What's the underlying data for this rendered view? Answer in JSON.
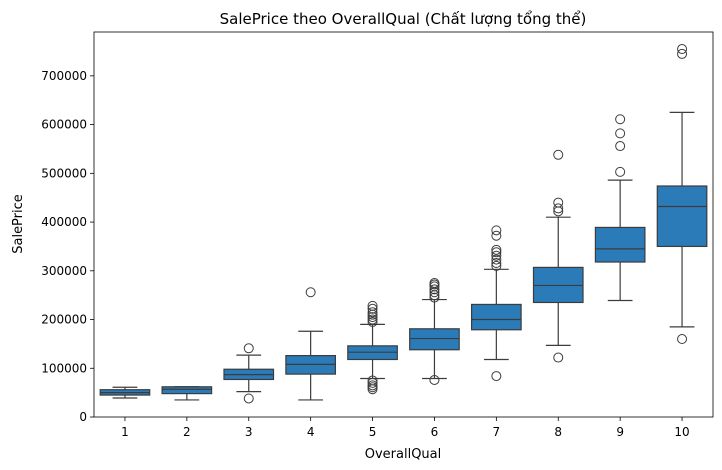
{
  "chart_data": {
    "type": "box",
    "title": "SalePrice theo OverallQual (Chất lượng tổng thể)",
    "xlabel": "OverallQual",
    "ylabel": "SalePrice",
    "categories": [
      "1",
      "2",
      "3",
      "4",
      "5",
      "6",
      "7",
      "8",
      "9",
      "10"
    ],
    "ylim": [
      0,
      790000
    ],
    "yticks": [
      0,
      100000,
      200000,
      300000,
      400000,
      500000,
      600000,
      700000
    ],
    "ytick_labels": [
      "0",
      "100000",
      "200000",
      "300000",
      "400000",
      "500000",
      "600000",
      "700000"
    ],
    "box_color": "#2b7bb9",
    "line_color": "#3c3c3c",
    "grid": false,
    "boxes": [
      {
        "category": "1",
        "whisker_low": 39000,
        "q1": 45000,
        "median": 50000,
        "q3": 56000,
        "whisker_high": 61000,
        "outliers": []
      },
      {
        "category": "2",
        "whisker_low": 35000,
        "q1": 48000,
        "median": 57000,
        "q3": 62000,
        "whisker_high": 62000,
        "outliers": []
      },
      {
        "category": "3",
        "whisker_low": 52000,
        "q1": 77000,
        "median": 87000,
        "q3": 98000,
        "whisker_high": 127000,
        "outliers": [
          38000,
          141000
        ]
      },
      {
        "category": "4",
        "whisker_low": 35000,
        "q1": 88000,
        "median": 108000,
        "q3": 126000,
        "whisker_high": 176000,
        "outliers": [
          256000
        ]
      },
      {
        "category": "5",
        "whisker_low": 79000,
        "q1": 118000,
        "median": 133000,
        "q3": 146000,
        "whisker_high": 190000,
        "outliers": [
          57000,
          61000,
          65000,
          70000,
          75000,
          195000,
          200000,
          205000,
          210000,
          215000,
          222000,
          228000
        ]
      },
      {
        "category": "6",
        "whisker_low": 79000,
        "q1": 138000,
        "median": 161000,
        "q3": 181000,
        "whisker_high": 241000,
        "outliers": [
          76000,
          245000,
          250000,
          256000,
          262000,
          268000,
          272000,
          275000
        ]
      },
      {
        "category": "7",
        "whisker_low": 118000,
        "q1": 179000,
        "median": 200000,
        "q3": 231000,
        "whisker_high": 303000,
        "outliers": [
          84000,
          310000,
          316000,
          323000,
          331000,
          338000,
          343000,
          372000,
          383000
        ]
      },
      {
        "category": "8",
        "whisker_low": 147000,
        "q1": 235000,
        "median": 270000,
        "q3": 307000,
        "whisker_high": 410000,
        "outliers": [
          122000,
          422000,
          428000,
          440000,
          538000
        ]
      },
      {
        "category": "9",
        "whisker_low": 239000,
        "q1": 318000,
        "median": 345000,
        "q3": 389000,
        "whisker_high": 486000,
        "outliers": [
          503000,
          556000,
          582000,
          611000
        ]
      },
      {
        "category": "10",
        "whisker_low": 185000,
        "q1": 350000,
        "median": 432000,
        "q3": 474000,
        "whisker_high": 625000,
        "outliers": [
          160000,
          745000,
          755000
        ]
      }
    ]
  }
}
